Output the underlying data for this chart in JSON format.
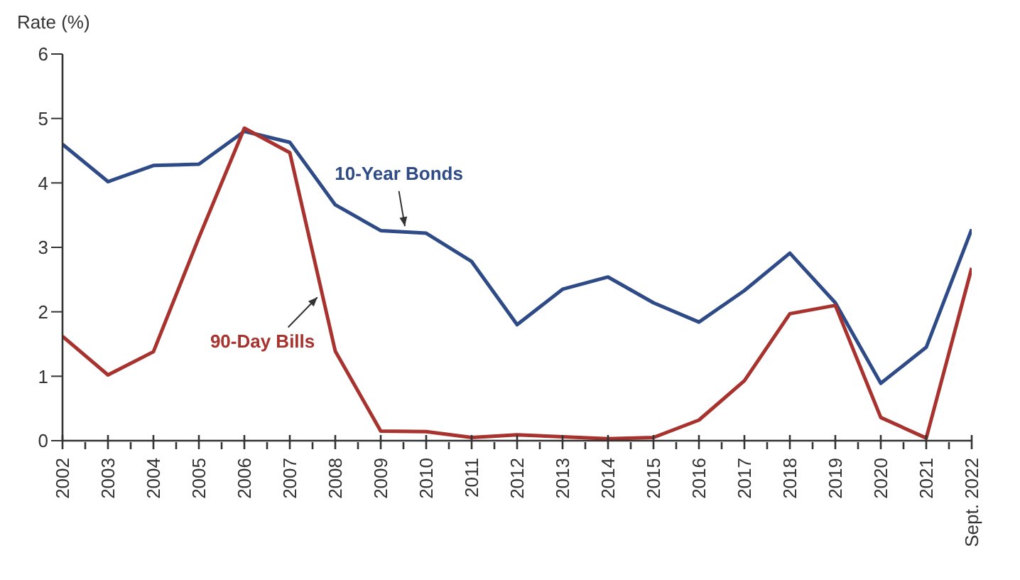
{
  "chart_data": {
    "type": "line",
    "ylabel": "Rate (%)",
    "categories": [
      "2002",
      "2003",
      "2004",
      "2005",
      "2006",
      "2007",
      "2008",
      "2009",
      "2010",
      "2011",
      "2012",
      "2013",
      "2014",
      "2015",
      "2016",
      "2017",
      "2018",
      "2019",
      "2020",
      "2021",
      "Sept. 2022"
    ],
    "series": [
      {
        "name": "10-Year Bonds",
        "color": "#2e4a87",
        "values": [
          4.6,
          4.02,
          4.27,
          4.29,
          4.8,
          4.63,
          3.66,
          3.26,
          3.22,
          2.78,
          1.8,
          2.35,
          2.54,
          2.14,
          1.84,
          2.33,
          2.91,
          2.14,
          0.89,
          1.45,
          3.28
        ]
      },
      {
        "name": "90-Day Bills",
        "color": "#a8322d",
        "values": [
          1.62,
          1.02,
          1.38,
          3.15,
          4.85,
          4.47,
          1.39,
          0.15,
          0.14,
          0.05,
          0.09,
          0.06,
          0.03,
          0.05,
          0.32,
          0.93,
          1.97,
          2.1,
          0.36,
          0.04,
          2.68
        ]
      }
    ],
    "ylim": [
      0,
      6
    ],
    "yticks": [
      0,
      1,
      2,
      3,
      4,
      5,
      6
    ],
    "grid": false,
    "legend": false,
    "marker": "none",
    "line_style": "solid"
  }
}
